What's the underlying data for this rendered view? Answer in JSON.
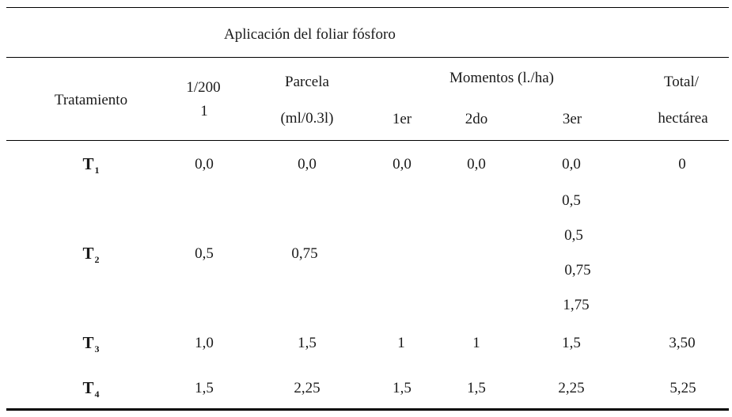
{
  "table": {
    "title": "Aplicación del foliar fósforo",
    "headers": {
      "tratamiento": "Tratamiento",
      "dilution_line1": "1/200",
      "dilution_line2": "1",
      "parcela_line1": "Parcela",
      "parcela_line2": "(ml/0.3l)",
      "momentos": "Momentos (l./ha)",
      "m1": "1er",
      "m2": "2do",
      "m3": "3er",
      "total_line1": "Total/",
      "total_line2": "hectárea"
    },
    "rows": [
      {
        "treatment": "T",
        "sub": "1",
        "dilution": "0,0",
        "parcela": "0,0",
        "m1": "0,0",
        "m2": "0,0",
        "m3": [
          "0,0"
        ],
        "total": "0"
      },
      {
        "treatment": "T",
        "sub": "2",
        "dilution": "0,5",
        "parcela": "0,75",
        "m1": "",
        "m2": "",
        "m3": [
          "0,5",
          "0,5",
          "0,75",
          "1,75"
        ],
        "total": ""
      },
      {
        "treatment": "T",
        "sub": "3",
        "dilution": "1,0",
        "parcela": "1,5",
        "m1": "1",
        "m2": "1",
        "m3": [
          "1,5"
        ],
        "total": "3,50"
      },
      {
        "treatment": "T",
        "sub": "4",
        "dilution": "1,5",
        "parcela": "2,25",
        "m1": "1,5",
        "m2": "1,5",
        "m3": [
          "2,25"
        ],
        "total": "5,25"
      }
    ]
  }
}
